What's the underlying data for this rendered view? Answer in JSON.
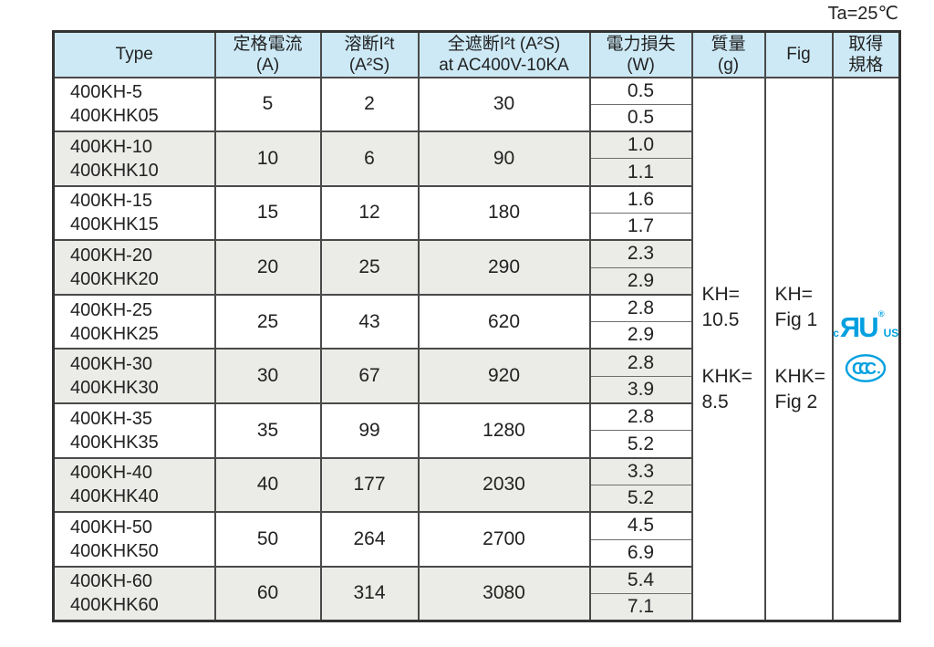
{
  "note": "Ta=25℃",
  "colors": {
    "header_bg": "#cde9f6",
    "shaded_row_bg": "#ebebe8",
    "grid_line": "#4a4a4a",
    "outer_border": "#333333",
    "text": "#222222",
    "logo_blue": "#00a0e0"
  },
  "table": {
    "headers": {
      "type": "Type",
      "rated_current": {
        "line1": "定格電流",
        "line2": "(A)"
      },
      "melting_i2t": {
        "line1": "溶断I²t",
        "line2": "(A²S)"
      },
      "clearing_i2t": {
        "line1": "全遮断I²t (A²S)",
        "line2": "at AC400V-10KA"
      },
      "power_loss": {
        "line1": "電力損失",
        "line2": "(W)"
      },
      "mass": {
        "line1": "質量",
        "line2": "(g)"
      },
      "fig": "Fig",
      "standards": {
        "line1": "取得",
        "line2": "規格"
      }
    },
    "rows": [
      {
        "type_kh": "400KH-5",
        "type_khk": "400KHK05",
        "rated_current_a": "5",
        "melting_i2t": "2",
        "clearing_i2t": "30",
        "power_loss_kh": "0.5",
        "power_loss_khk": "0.5",
        "shaded": false
      },
      {
        "type_kh": "400KH-10",
        "type_khk": "400KHK10",
        "rated_current_a": "10",
        "melting_i2t": "6",
        "clearing_i2t": "90",
        "power_loss_kh": "1.0",
        "power_loss_khk": "1.1",
        "shaded": true
      },
      {
        "type_kh": "400KH-15",
        "type_khk": "400KHK15",
        "rated_current_a": "15",
        "melting_i2t": "12",
        "clearing_i2t": "180",
        "power_loss_kh": "1.6",
        "power_loss_khk": "1.7",
        "shaded": false
      },
      {
        "type_kh": "400KH-20",
        "type_khk": "400KHK20",
        "rated_current_a": "20",
        "melting_i2t": "25",
        "clearing_i2t": "290",
        "power_loss_kh": "2.3",
        "power_loss_khk": "2.9",
        "shaded": true
      },
      {
        "type_kh": "400KH-25",
        "type_khk": "400KHK25",
        "rated_current_a": "25",
        "melting_i2t": "43",
        "clearing_i2t": "620",
        "power_loss_kh": "2.8",
        "power_loss_khk": "2.9",
        "shaded": false
      },
      {
        "type_kh": "400KH-30",
        "type_khk": "400KHK30",
        "rated_current_a": "30",
        "melting_i2t": "67",
        "clearing_i2t": "920",
        "power_loss_kh": "2.8",
        "power_loss_khk": "3.9",
        "shaded": true
      },
      {
        "type_kh": "400KH-35",
        "type_khk": "400KHK35",
        "rated_current_a": "35",
        "melting_i2t": "99",
        "clearing_i2t": "1280",
        "power_loss_kh": "2.8",
        "power_loss_khk": "5.2",
        "shaded": false
      },
      {
        "type_kh": "400KH-40",
        "type_khk": "400KHK40",
        "rated_current_a": "40",
        "melting_i2t": "177",
        "clearing_i2t": "2030",
        "power_loss_kh": "3.3",
        "power_loss_khk": "5.2",
        "shaded": true
      },
      {
        "type_kh": "400KH-50",
        "type_khk": "400KHK50",
        "rated_current_a": "50",
        "melting_i2t": "264",
        "clearing_i2t": "2700",
        "power_loss_kh": "4.5",
        "power_loss_khk": "6.9",
        "shaded": false
      },
      {
        "type_kh": "400KH-60",
        "type_khk": "400KHK60",
        "rated_current_a": "60",
        "melting_i2t": "314",
        "clearing_i2t": "3080",
        "power_loss_kh": "5.4",
        "power_loss_khk": "7.1",
        "shaded": true
      }
    ],
    "mass_note": {
      "kh_label": "KH=",
      "kh_value": "10.5",
      "khk_label": "KHK=",
      "khk_value": "8.5"
    },
    "fig_note": {
      "kh_label": "KH=",
      "kh_value": "Fig 1",
      "khk_label": "KHK=",
      "khk_value": "Fig 2"
    },
    "standards": {
      "ul_mark": {
        "left": "c",
        "letters": "ЯU",
        "registered": "®",
        "right": "US"
      },
      "ccc_mark": {
        "letters": [
          "C",
          "C",
          "C"
        ]
      }
    }
  }
}
